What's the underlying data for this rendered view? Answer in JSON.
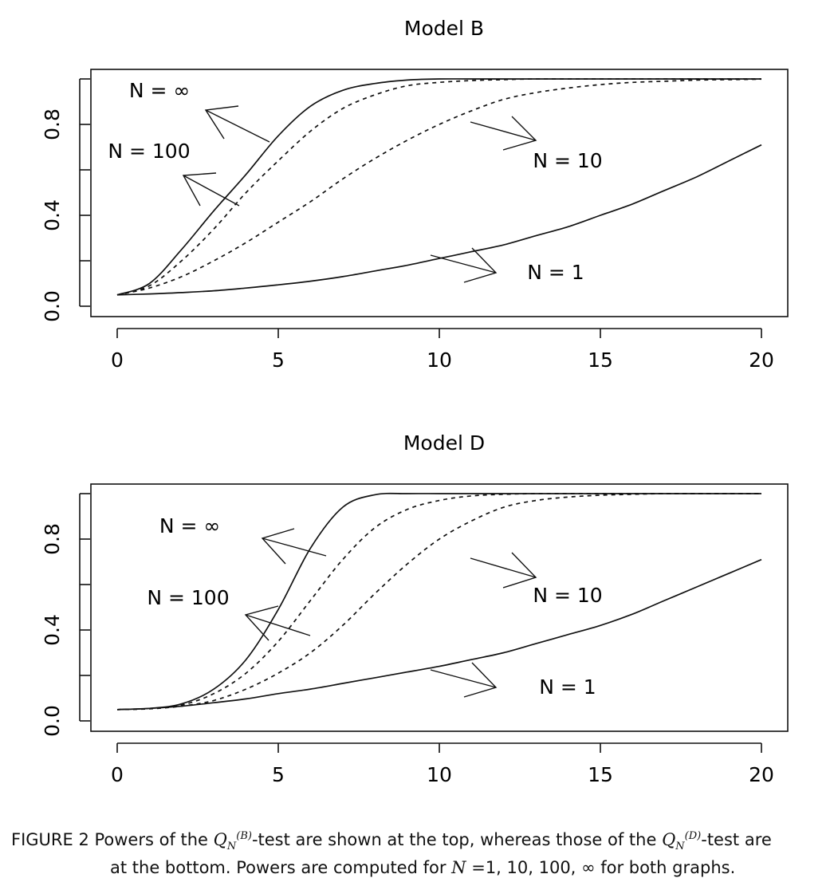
{
  "chart_data": [
    {
      "type": "line",
      "title": "Model B",
      "xlim": [
        0,
        20
      ],
      "ylim": [
        0,
        1
      ],
      "xticks": [
        "0",
        "5",
        "10",
        "15",
        "20"
      ],
      "yticks": [
        "0.0",
        "0.4",
        "0.8"
      ],
      "x": [
        0,
        1,
        2,
        3,
        4,
        5,
        6,
        7,
        8,
        9,
        10,
        11,
        12,
        13,
        14,
        15,
        16,
        17,
        18,
        19,
        20
      ],
      "series": [
        {
          "name": "N = ∞",
          "style": "solid",
          "values": [
            0.05,
            0.1,
            0.25,
            0.42,
            0.58,
            0.75,
            0.88,
            0.95,
            0.98,
            0.995,
            1.0,
            1.0,
            1.0,
            1.0,
            1.0,
            1.0,
            1.0,
            1.0,
            1.0,
            1.0,
            1.0
          ]
        },
        {
          "name": "N = 100",
          "style": "dashed",
          "values": [
            0.05,
            0.09,
            0.2,
            0.34,
            0.5,
            0.64,
            0.77,
            0.87,
            0.93,
            0.97,
            0.985,
            0.993,
            0.997,
            1.0,
            1.0,
            1.0,
            1.0,
            1.0,
            1.0,
            1.0,
            1.0
          ]
        },
        {
          "name": "N = 10",
          "style": "dashed",
          "values": [
            0.05,
            0.08,
            0.13,
            0.2,
            0.28,
            0.37,
            0.46,
            0.56,
            0.65,
            0.73,
            0.8,
            0.86,
            0.91,
            0.94,
            0.96,
            0.975,
            0.985,
            0.99,
            0.995,
            0.997,
            0.999
          ]
        },
        {
          "name": "N = 1",
          "style": "solid",
          "values": [
            0.05,
            0.054,
            0.06,
            0.068,
            0.08,
            0.094,
            0.11,
            0.13,
            0.155,
            0.18,
            0.21,
            0.24,
            0.27,
            0.31,
            0.35,
            0.4,
            0.45,
            0.51,
            0.57,
            0.64,
            0.71
          ]
        }
      ],
      "annotations": [
        {
          "text": "N = ∞"
        },
        {
          "text": "N = 100"
        },
        {
          "text": "N = 10"
        },
        {
          "text": "N = 1"
        }
      ]
    },
    {
      "type": "line",
      "title": "Model D",
      "xlim": [
        0,
        20
      ],
      "ylim": [
        0,
        1
      ],
      "xticks": [
        "0",
        "5",
        "10",
        "15",
        "20"
      ],
      "yticks": [
        "0.0",
        "0.4",
        "0.8"
      ],
      "x": [
        0,
        1,
        2,
        3,
        4,
        5,
        6,
        7,
        8,
        9,
        10,
        11,
        12,
        13,
        14,
        15,
        16,
        17,
        18,
        19,
        20
      ],
      "series": [
        {
          "name": "N = ∞",
          "style": "solid",
          "values": [
            0.05,
            0.055,
            0.075,
            0.14,
            0.27,
            0.49,
            0.76,
            0.94,
            0.995,
            1.0,
            1.0,
            1.0,
            1.0,
            1.0,
            1.0,
            1.0,
            1.0,
            1.0,
            1.0,
            1.0,
            1.0
          ]
        },
        {
          "name": "N = 100",
          "style": "dashed",
          "values": [
            0.05,
            0.054,
            0.07,
            0.12,
            0.21,
            0.35,
            0.53,
            0.71,
            0.85,
            0.93,
            0.97,
            0.99,
            0.997,
            1.0,
            1.0,
            1.0,
            1.0,
            1.0,
            1.0,
            1.0,
            1.0
          ]
        },
        {
          "name": "N = 10",
          "style": "dashed",
          "values": [
            0.05,
            0.053,
            0.065,
            0.09,
            0.14,
            0.21,
            0.3,
            0.42,
            0.56,
            0.69,
            0.8,
            0.88,
            0.94,
            0.97,
            0.985,
            0.993,
            0.997,
            1.0,
            1.0,
            1.0,
            1.0
          ]
        },
        {
          "name": "N = 1",
          "style": "solid",
          "values": [
            0.05,
            0.055,
            0.065,
            0.08,
            0.097,
            0.12,
            0.14,
            0.165,
            0.19,
            0.215,
            0.24,
            0.27,
            0.3,
            0.34,
            0.38,
            0.42,
            0.47,
            0.53,
            0.59,
            0.65,
            0.71
          ]
        }
      ],
      "annotations": [
        {
          "text": "N = ∞"
        },
        {
          "text": "N = 100"
        },
        {
          "text": "N = 10"
        },
        {
          "text": "N = 1"
        }
      ]
    }
  ],
  "caption": {
    "label": "FIGURE 2",
    "text1a": " Powers of the ",
    "text1b": "-test are shown at the top, whereas those of the ",
    "text1c": "-test are",
    "sym_q": "Q",
    "sym_n": "N",
    "sym_b": "(B)",
    "sym_d": "(D)",
    "text2a": "at the bottom. Powers are computed for ",
    "text2b": "N",
    "text2c": " =1, 10, 100, ∞ for both graphs."
  }
}
